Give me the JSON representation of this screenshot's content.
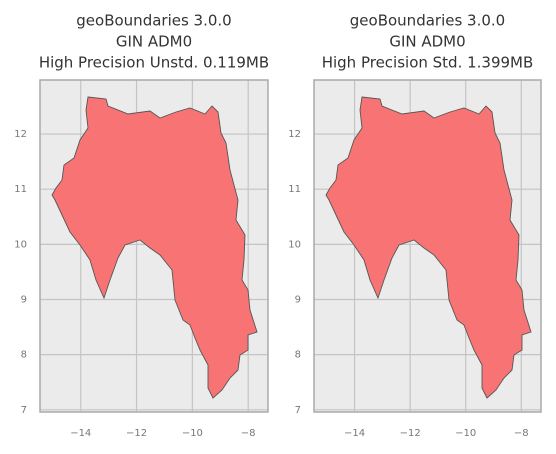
{
  "chart_data": [
    {
      "type": "map",
      "title": [
        "geoBoundaries 3.0.0",
        "GIN ADM0",
        "High Precision Unstd. 0.119MB"
      ],
      "color": "#f87474",
      "edgecolor": "#555555",
      "grid": true,
      "xlim": [
        -15.46,
        -7.29
      ],
      "ylim": [
        6.96,
        12.98
      ],
      "xticks": [
        {
          "value": -14,
          "label": "−14"
        },
        {
          "value": -12,
          "label": "−12"
        },
        {
          "value": -10,
          "label": "−10"
        },
        {
          "value": -8,
          "label": "−8"
        }
      ],
      "yticks": [
        7,
        8,
        9,
        10,
        11,
        12
      ]
    },
    {
      "type": "map",
      "title": [
        "geoBoundaries 3.0.0",
        "GIN ADM0",
        "High Precision Std. 1.399MB"
      ],
      "color": "#f87474",
      "edgecolor": "#555555",
      "grid": true,
      "xlim": [
        -15.46,
        -7.29
      ],
      "ylim": [
        6.96,
        12.98
      ],
      "xticks": [
        {
          "value": -14,
          "label": "−14"
        },
        {
          "value": -12,
          "label": "−12"
        },
        {
          "value": -10,
          "label": "−10"
        },
        {
          "value": -8,
          "label": "−8"
        }
      ],
      "yticks": [
        7,
        8,
        9,
        10,
        11,
        12
      ]
    }
  ]
}
